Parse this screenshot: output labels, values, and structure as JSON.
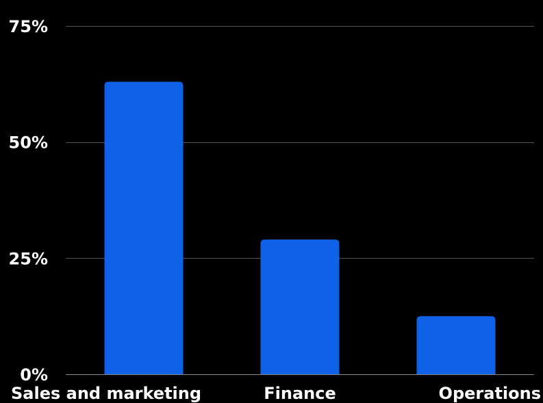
{
  "chart_data": {
    "type": "bar",
    "categories": [
      "Sales and marketing",
      "Finance",
      "Operations"
    ],
    "values": [
      63,
      29,
      12.5
    ],
    "y_tick_labels": [
      "0%",
      "25%",
      "50%",
      "75%"
    ],
    "y_ticks": [
      0,
      25,
      50,
      75
    ],
    "ylim": [
      0,
      75
    ],
    "grid": true,
    "colors": {
      "background": "#000000",
      "bar": "#0F62E8",
      "grid": "#555555",
      "text": "#ffffff"
    }
  }
}
